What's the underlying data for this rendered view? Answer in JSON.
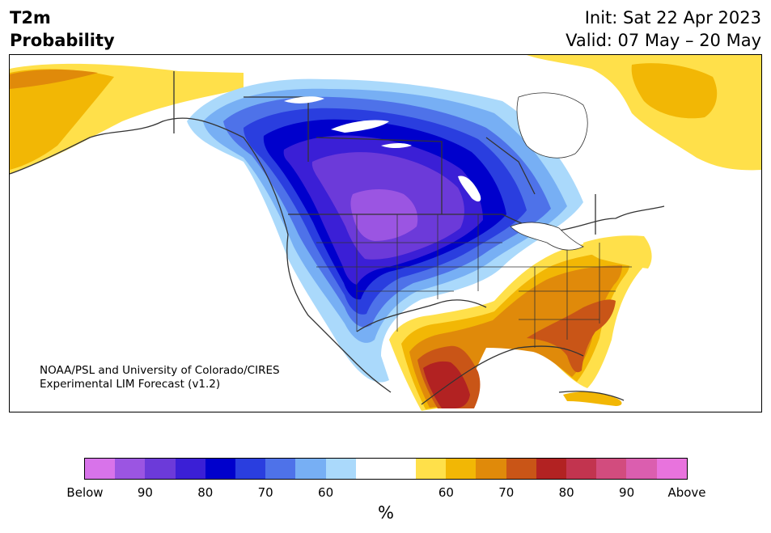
{
  "header": {
    "title_line1": "T2m",
    "title_line2": "Probability",
    "init": "Init: Sat 22 Apr 2023",
    "valid": "Valid: 07 May – 20 May"
  },
  "credit": {
    "line1": "NOAA/PSL and University of Colorado/CIRES",
    "line2": "Experimental LIM Forecast (v1.2)"
  },
  "colorbar": {
    "colors": [
      "#d873ea",
      "#9b55e2",
      "#6c3ad9",
      "#3b1fd6",
      "#0000cc",
      "#2a3edf",
      "#4e72e9",
      "#77aff4",
      "#aad9fb",
      "#ffffff",
      "#ffffff",
      "#ffe04a",
      "#f2b705",
      "#e08a0a",
      "#c95517",
      "#b22222",
      "#c2344f",
      "#d24c7e",
      "#db5eaf",
      "#e873dd"
    ],
    "tick_labels": [
      "Below",
      "90",
      "80",
      "70",
      "60",
      "60",
      "70",
      "80",
      "90",
      "Above"
    ],
    "unit": "%"
  },
  "colors": {
    "below_90": "#9b55e2",
    "below_80": "#6c3ad9",
    "below_75": "#3b1fd6",
    "below_70": "#0000cc",
    "below_65": "#2a3edf",
    "below_60": "#4e72e9",
    "below_55": "#77aff4",
    "below_50": "#aad9fb",
    "above_50": "#ffe04a",
    "above_55": "#f2b705",
    "above_60": "#e08a0a",
    "above_65": "#c95517",
    "above_70": "#b22222",
    "border": "#333333"
  }
}
